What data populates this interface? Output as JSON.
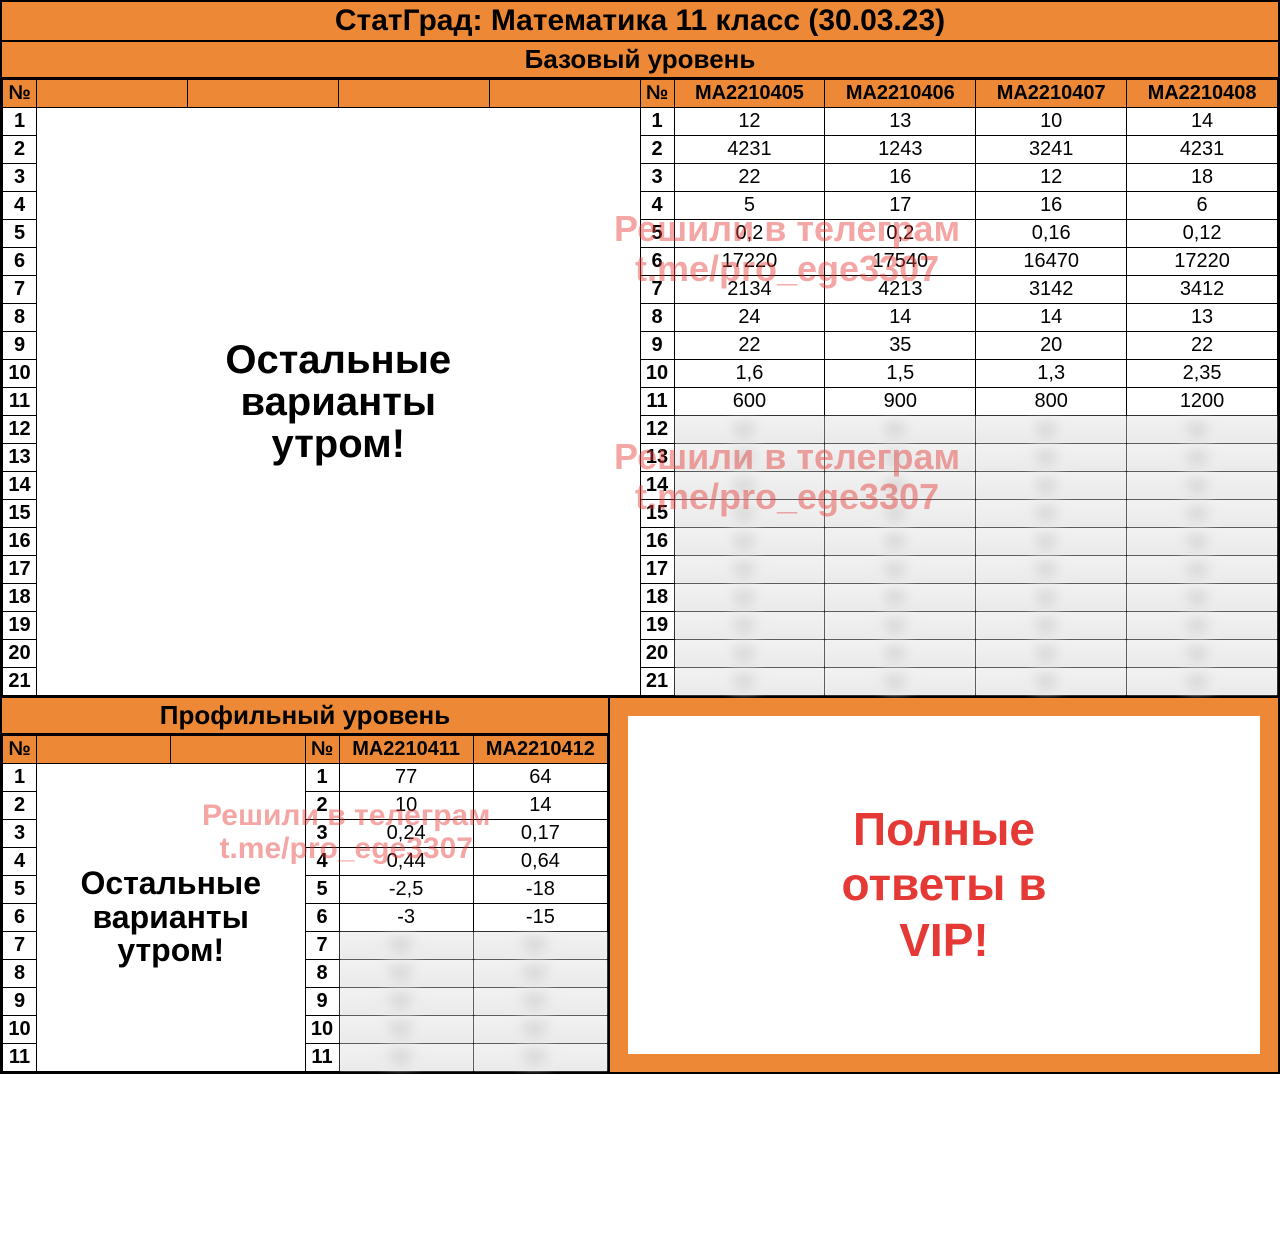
{
  "colors": {
    "header_bg": "#ed8936",
    "border": "#000000",
    "watermark": "rgba(229,57,53,0.45)",
    "accent_red": "#e53935",
    "blur_bg": "#eeeeee"
  },
  "main_title": "СтатГрад: Математика 11 класс (30.03.23)",
  "basic": {
    "title": "Базовый уровень",
    "num_label": "№",
    "left_msg_line1": "Остальные",
    "left_msg_line2": "варианты",
    "left_msg_line3": "утром!",
    "variants": [
      "MA2210405",
      "MA2210406",
      "MA2210407",
      "MA2210408"
    ],
    "rows_total": 21,
    "rows_filled": 11,
    "data": [
      [
        "12",
        "13",
        "10",
        "14"
      ],
      [
        "4231",
        "1243",
        "3241",
        "4231"
      ],
      [
        "22",
        "16",
        "12",
        "18"
      ],
      [
        "5",
        "17",
        "16",
        "6"
      ],
      [
        "0,2",
        "0,2",
        "0,16",
        "0,12"
      ],
      [
        "17220",
        "17540",
        "16470",
        "17220"
      ],
      [
        "2134",
        "4213",
        "3142",
        "3412"
      ],
      [
        "24",
        "14",
        "14",
        "13"
      ],
      [
        "22",
        "35",
        "20",
        "22"
      ],
      [
        "1,6",
        "1,5",
        "1,3",
        "2,35"
      ],
      [
        "600",
        "900",
        "800",
        "1200"
      ]
    ],
    "watermark_line1": "Решили в телеграм",
    "watermark_line2": "t.me/pro_ege3307"
  },
  "profile": {
    "title": "Профильный уровень",
    "num_label": "№",
    "left_msg_line1": "Остальные",
    "left_msg_line2": "варианты",
    "left_msg_line3": "утром!",
    "variants": [
      "MA2210411",
      "MA2210412"
    ],
    "rows_total": 11,
    "rows_filled": 6,
    "data": [
      [
        "77",
        "64"
      ],
      [
        "10",
        "14"
      ],
      [
        "0,24",
        "0,17"
      ],
      [
        "0,44",
        "0,64"
      ],
      [
        "-2,5",
        "-18"
      ],
      [
        "-3",
        "-15"
      ]
    ],
    "watermark_line1": "Решили в телеграм",
    "watermark_line2": "t.me/pro_ege3307"
  },
  "full_answers": {
    "line1": "Полные",
    "line2": "ответы в",
    "line3": "VIP!"
  }
}
